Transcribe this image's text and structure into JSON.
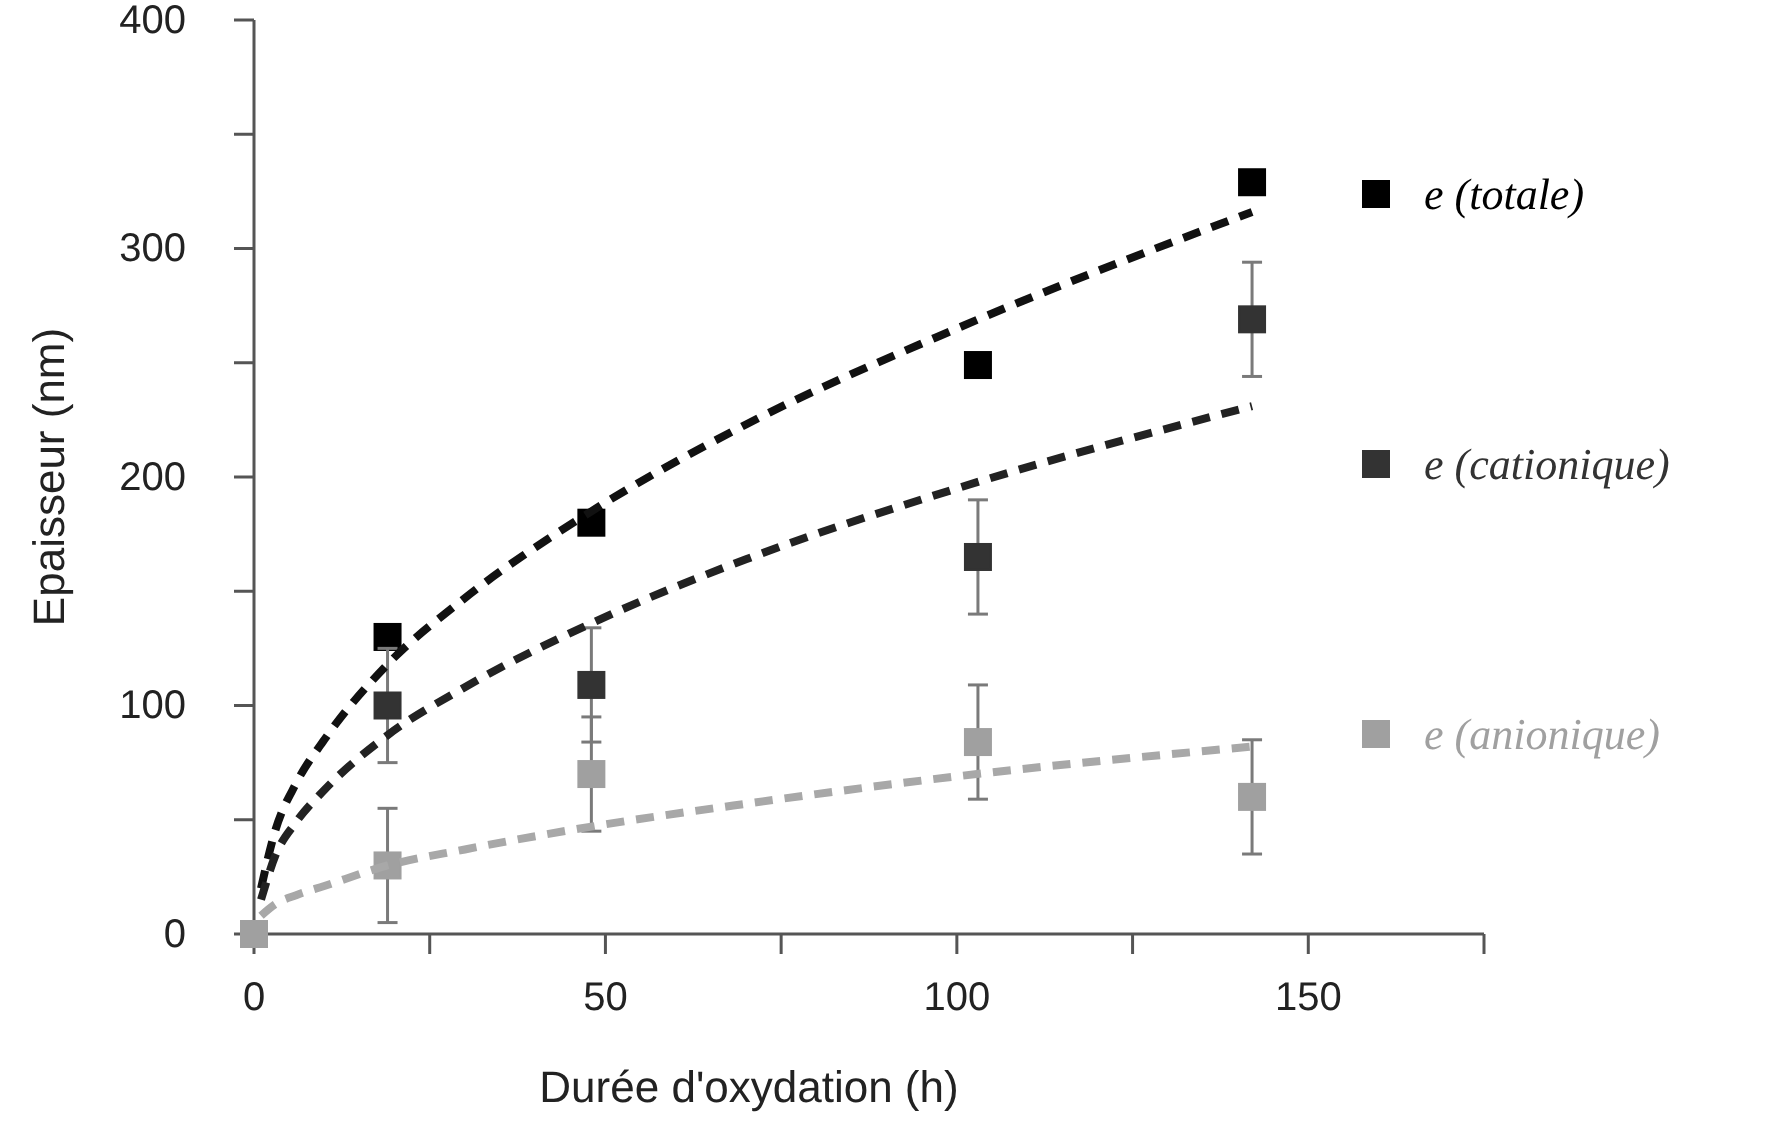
{
  "chart_data": {
    "type": "scatter",
    "xlabel": "Durée d'oxydation (h)",
    "ylabel": "Epaisseur (nm)",
    "xlim": [
      0,
      175
    ],
    "xticks": [
      0,
      {
        "value": 25,
        "label": null
      },
      50,
      {
        "value": 75,
        "label": null
      },
      100,
      {
        "value": 125,
        "label": null
      },
      150,
      {
        "value": 175,
        "label": null
      }
    ],
    "ylim": [
      0,
      400
    ],
    "yticks": [
      0,
      {
        "value": 50,
        "label": null
      },
      100,
      {
        "value": 150,
        "label": null
      },
      200,
      {
        "value": 250,
        "label": null
      },
      300,
      {
        "value": 350,
        "label": null
      },
      400
    ],
    "grid": false,
    "legend": "right",
    "marker": "square",
    "series": [
      {
        "name": "e (totale)",
        "color": "#000000",
        "x": [
          19,
          48,
          103,
          142
        ],
        "values": [
          130,
          180,
          249,
          329
        ]
      },
      {
        "name": "e (cationique)",
        "color": "#333333",
        "x": [
          19,
          48,
          103,
          142
        ],
        "values": [
          100,
          109,
          165,
          269
        ],
        "errors": [
          25,
          25,
          25,
          25
        ]
      },
      {
        "name": "e (anionique)",
        "color": "#a0a0a0",
        "x": [
          0,
          19,
          48,
          103,
          142
        ],
        "values": [
          0,
          30,
          70,
          84,
          60
        ],
        "errors": [
          null,
          25,
          25,
          25,
          25
        ]
      },
      {
        "type": "line",
        "line_style": "dashed",
        "marker": "none",
        "color": "#111111",
        "x": [
          1,
          3,
          6,
          10,
          19,
          30,
          48,
          70,
          100,
          142
        ],
        "values": [
          20,
          45,
          66,
          85,
          118,
          147,
          185,
          223,
          265,
          316
        ]
      },
      {
        "type": "line",
        "line_style": "dashed",
        "marker": "none",
        "color": "#222222",
        "x": [
          1,
          3,
          6,
          10,
          19,
          30,
          48,
          70,
          100,
          142
        ],
        "values": [
          15,
          34,
          49,
          63,
          87,
          108,
          136,
          164,
          195,
          231
        ]
      },
      {
        "type": "line",
        "line_style": "dashed",
        "marker": "none",
        "color": "#a8a8a8",
        "x": [
          1,
          3,
          6,
          10,
          19,
          30,
          48,
          70,
          100,
          142
        ],
        "values": [
          8,
          13,
          17,
          21,
          30,
          37,
          47,
          57,
          69,
          82
        ]
      }
    ]
  }
}
